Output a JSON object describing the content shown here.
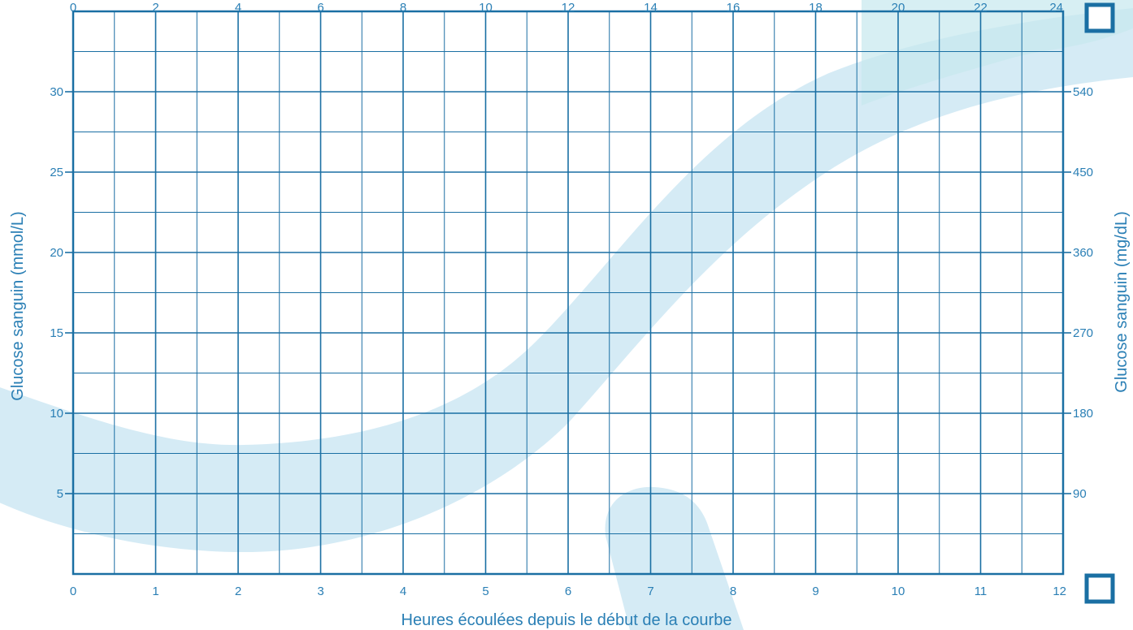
{
  "colors": {
    "grid": "#1a6fa3",
    "text": "#2a7fb5",
    "band": "#bfe0ef",
    "band_teal": "#c6e8ee",
    "checkbox": "#1a6fa3"
  },
  "icons": {
    "top_checkbox": "checkbox-icon",
    "bottom_checkbox": "checkbox-icon"
  },
  "chart_data": {
    "type": "grid",
    "grid": true,
    "x_top": {
      "ticks": [
        0,
        2,
        4,
        6,
        8,
        10,
        12,
        14,
        16,
        18,
        20,
        22,
        24
      ],
      "range": [
        0,
        24
      ]
    },
    "x_bottom": {
      "ticks": [
        0,
        1,
        2,
        3,
        4,
        5,
        6,
        7,
        8,
        9,
        10,
        11,
        12
      ],
      "range": [
        0,
        12
      ]
    },
    "xlabel": "Heures écoulées depuis le début de la courbe",
    "y_left": {
      "ticks": [
        5,
        10,
        15,
        20,
        25,
        30
      ],
      "range": [
        0,
        35
      ],
      "label": "Glucose sanguin (mmol/L)"
    },
    "y_right": {
      "ticks": [
        90,
        180,
        270,
        360,
        450,
        540
      ],
      "range": [
        0,
        630
      ],
      "label": "Glucose sanguin (mg/dL)"
    }
  }
}
